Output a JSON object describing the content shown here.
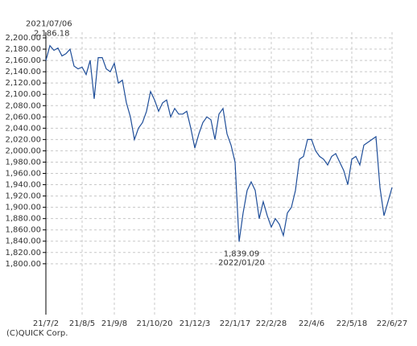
{
  "chart_data": {
    "type": "line",
    "categories": [
      "21/7/2",
      null,
      null,
      null,
      null,
      null,
      null,
      null,
      null,
      "21/8/5",
      null,
      null,
      null,
      null,
      null,
      null,
      null,
      "21/9/8",
      null,
      null,
      null,
      null,
      null,
      null,
      null,
      null,
      null,
      "21/10/20",
      null,
      null,
      null,
      null,
      null,
      null,
      null,
      null,
      null,
      "21/12/3",
      null,
      null,
      null,
      null,
      null,
      null,
      null,
      null,
      null,
      "22/1/17",
      null,
      null,
      null,
      null,
      null,
      null,
      null,
      null,
      "22/2/28",
      null,
      null,
      null,
      null,
      null,
      null,
      null,
      null,
      null,
      "22/4/6",
      null,
      null,
      null,
      null,
      null,
      null,
      null,
      null,
      null,
      "22/5/18",
      null,
      null,
      null,
      null,
      null,
      null,
      null,
      null,
      null,
      "22/6/27"
    ],
    "series": [
      {
        "color": "#1f4e99",
        "values": [
          2160,
          2186.18,
          2178,
          2182,
          2168,
          2172,
          2180,
          2150,
          2145,
          2148,
          2135,
          2160,
          2092,
          2165,
          2165,
          2145,
          2140,
          2155,
          2120,
          2125,
          2085,
          2060,
          2020,
          2040,
          2050,
          2070,
          2105,
          2090,
          2070,
          2085,
          2090,
          2060,
          2075,
          2065,
          2065,
          2070,
          2040,
          2005,
          2030,
          2050,
          2060,
          2055,
          2020,
          2065,
          2075,
          2030,
          2010,
          1980,
          1839.09,
          1890,
          1930,
          1945,
          1930,
          1880,
          1910,
          1885,
          1865,
          1880,
          1870,
          1850,
          1890,
          1900,
          1930,
          1985,
          1990,
          2020,
          2020,
          2000,
          1990,
          1985,
          1975,
          1990,
          1995,
          1980,
          1965,
          1940,
          1985,
          1990,
          1975,
          2010,
          2015,
          2020,
          2025,
          1935,
          1885,
          1910,
          1935
        ],
        "value_labels": [
          null,
          "2,186.18",
          null,
          null,
          null,
          null,
          null,
          null,
          null,
          null,
          null,
          null,
          null,
          null,
          null,
          null,
          null,
          null,
          null,
          null,
          null,
          null,
          null,
          null,
          null,
          null,
          null,
          null,
          null,
          null,
          null,
          null,
          null,
          null,
          null,
          null,
          null,
          null,
          null,
          null,
          null,
          null,
          null,
          null,
          null,
          null,
          null,
          null,
          "1,839.09",
          null,
          null,
          null,
          null,
          null,
          null,
          null,
          null,
          null,
          null,
          null,
          null,
          null,
          null,
          null,
          null,
          null,
          null,
          null,
          null,
          null,
          null,
          null,
          null,
          null,
          null,
          null,
          null,
          null,
          null,
          null,
          null,
          null,
          null,
          null,
          null,
          null,
          null
        ],
        "point_dates": [
          null,
          "2021/07/06",
          null,
          null,
          null,
          null,
          null,
          null,
          null,
          null,
          null,
          null,
          null,
          null,
          null,
          null,
          null,
          null,
          null,
          null,
          null,
          null,
          null,
          null,
          null,
          null,
          null,
          null,
          null,
          null,
          null,
          null,
          null,
          null,
          null,
          null,
          null,
          null,
          null,
          null,
          null,
          null,
          null,
          null,
          null,
          null,
          null,
          null,
          "2022/01/20",
          null,
          null,
          null,
          null,
          null,
          null,
          null,
          null,
          null,
          null,
          null,
          null,
          null,
          null,
          null,
          null,
          null,
          null,
          null,
          null,
          null,
          null,
          null,
          null,
          null,
          null,
          null,
          null,
          null,
          null,
          null,
          null,
          null,
          null,
          null,
          null,
          null,
          null
        ]
      }
    ],
    "ylim": [
      1710,
      2210
    ],
    "yticks": [
      {
        "value": 1800,
        "label": "1,800.00"
      },
      {
        "value": 1820,
        "label": "1,820.00"
      },
      {
        "value": 1840,
        "label": "1,840.00"
      },
      {
        "value": 1860,
        "label": "1,860.00"
      },
      {
        "value": 1880,
        "label": "1,880.00"
      },
      {
        "value": 1900,
        "label": "1,900.00"
      },
      {
        "value": 1920,
        "label": "1,920.00"
      },
      {
        "value": 1940,
        "label": "1,940.00"
      },
      {
        "value": 1960,
        "label": "1,960.00"
      },
      {
        "value": 1980,
        "label": "1,980.00"
      },
      {
        "value": 2000,
        "label": "2,000.00"
      },
      {
        "value": 2020,
        "label": "2,020.00"
      },
      {
        "value": 2040,
        "label": "2,040.00"
      },
      {
        "value": 2060,
        "label": "2,060.00"
      },
      {
        "value": 2080,
        "label": "2,080.00"
      },
      {
        "value": 2100,
        "label": "2,100.00"
      },
      {
        "value": 2120,
        "label": "2,120.00"
      },
      {
        "value": 2140,
        "label": "2,140.00"
      },
      {
        "value": 2160,
        "label": "2,160.00"
      },
      {
        "value": 2180,
        "label": "2,180.00"
      },
      {
        "value": 2200,
        "label": "2,200.00"
      }
    ],
    "grid": true,
    "source": "(C)QUICK Corp."
  }
}
